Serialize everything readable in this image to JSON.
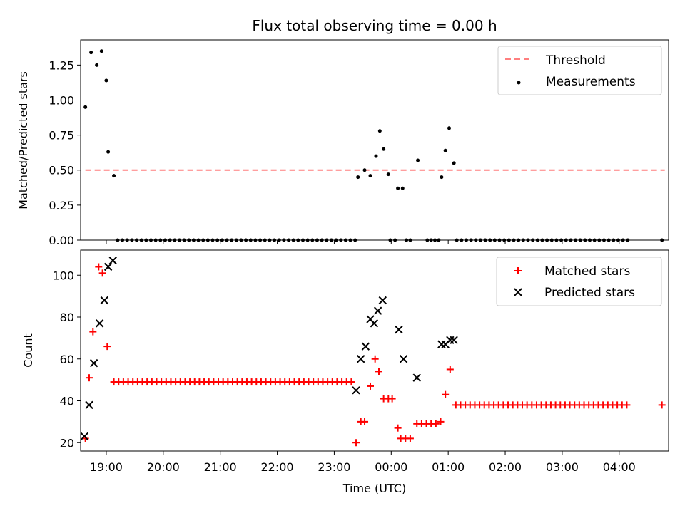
{
  "title": "Flux total observing time = 0.00 h",
  "xlabel": "Time (UTC)",
  "colors": {
    "threshold": "#ff7f7f",
    "measurement": "#000000",
    "matched": "#ff0000",
    "predicted": "#000000"
  },
  "chart_data": [
    {
      "type": "scatter",
      "ylabel": "Matched/Predicted stars",
      "xlim": [
        "18:33",
        "04:52"
      ],
      "ylim": [
        0,
        1.43
      ],
      "yticks": [
        0.0,
        0.25,
        0.5,
        0.75,
        1.0,
        1.25
      ],
      "ytick_labels": [
        "0.00",
        "0.25",
        "0.50",
        "0.75",
        "1.00",
        "1.25"
      ],
      "legend": "top-right",
      "threshold": {
        "name": "Threshold",
        "y": 0.5,
        "x": [
          "18:38",
          "04:48"
        ]
      },
      "series": [
        {
          "name": "Measurements",
          "points": [
            [
              "18:38",
              0.95
            ],
            [
              "18:44",
              1.34
            ],
            [
              "18:50",
              1.25
            ],
            [
              "18:55",
              1.35
            ],
            [
              "19:00",
              1.14
            ],
            [
              "19:02",
              0.63
            ],
            [
              "19:08",
              0.46
            ],
            [
              "19:12",
              0
            ],
            [
              "19:17",
              0
            ],
            [
              "19:22",
              0
            ],
            [
              "19:27",
              0
            ],
            [
              "19:32",
              0
            ],
            [
              "19:37",
              0
            ],
            [
              "19:42",
              0
            ],
            [
              "19:47",
              0
            ],
            [
              "19:52",
              0
            ],
            [
              "19:57",
              0
            ],
            [
              "20:02",
              0
            ],
            [
              "20:07",
              0
            ],
            [
              "20:12",
              0
            ],
            [
              "20:17",
              0
            ],
            [
              "20:22",
              0
            ],
            [
              "20:27",
              0
            ],
            [
              "20:32",
              0
            ],
            [
              "20:37",
              0
            ],
            [
              "20:42",
              0
            ],
            [
              "20:47",
              0
            ],
            [
              "20:52",
              0
            ],
            [
              "20:57",
              0
            ],
            [
              "21:02",
              0
            ],
            [
              "21:07",
              0
            ],
            [
              "21:12",
              0
            ],
            [
              "21:17",
              0
            ],
            [
              "21:22",
              0
            ],
            [
              "21:27",
              0
            ],
            [
              "21:32",
              0
            ],
            [
              "21:37",
              0
            ],
            [
              "21:42",
              0
            ],
            [
              "21:47",
              0
            ],
            [
              "21:52",
              0
            ],
            [
              "21:57",
              0
            ],
            [
              "22:02",
              0
            ],
            [
              "22:07",
              0
            ],
            [
              "22:12",
              0
            ],
            [
              "22:17",
              0
            ],
            [
              "22:22",
              0
            ],
            [
              "22:27",
              0
            ],
            [
              "22:32",
              0
            ],
            [
              "22:37",
              0
            ],
            [
              "22:42",
              0
            ],
            [
              "22:47",
              0
            ],
            [
              "22:52",
              0
            ],
            [
              "22:57",
              0
            ],
            [
              "23:02",
              0
            ],
            [
              "23:07",
              0
            ],
            [
              "23:12",
              0
            ],
            [
              "23:17",
              0
            ],
            [
              "23:22",
              0
            ],
            [
              "23:25",
              0.45
            ],
            [
              "23:32",
              0.5
            ],
            [
              "23:38",
              0.46
            ],
            [
              "23:44",
              0.6
            ],
            [
              "23:48",
              0.78
            ],
            [
              "23:52",
              0.65
            ],
            [
              "23:57",
              0.47
            ],
            [
              "23:59",
              0
            ],
            [
              "00:04",
              0
            ],
            [
              "00:07",
              0.37
            ],
            [
              "00:12",
              0.37
            ],
            [
              "00:16",
              0
            ],
            [
              "00:20",
              0
            ],
            [
              "00:28",
              0.57
            ],
            [
              "00:38",
              0
            ],
            [
              "00:42",
              0
            ],
            [
              "00:46",
              0
            ],
            [
              "00:50",
              0
            ],
            [
              "00:53",
              0.45
            ],
            [
              "00:57",
              0.64
            ],
            [
              "01:01",
              0.8
            ],
            [
              "01:06",
              0.55
            ],
            [
              "01:09",
              0
            ],
            [
              "01:14",
              0
            ],
            [
              "01:19",
              0
            ],
            [
              "01:24",
              0
            ],
            [
              "01:29",
              0
            ],
            [
              "01:34",
              0
            ],
            [
              "01:39",
              0
            ],
            [
              "01:44",
              0
            ],
            [
              "01:49",
              0
            ],
            [
              "01:54",
              0
            ],
            [
              "01:59",
              0
            ],
            [
              "02:04",
              0
            ],
            [
              "02:09",
              0
            ],
            [
              "02:14",
              0
            ],
            [
              "02:19",
              0
            ],
            [
              "02:24",
              0
            ],
            [
              "02:29",
              0
            ],
            [
              "02:34",
              0
            ],
            [
              "02:39",
              0
            ],
            [
              "02:44",
              0
            ],
            [
              "02:49",
              0
            ],
            [
              "02:54",
              0
            ],
            [
              "02:59",
              0
            ],
            [
              "03:04",
              0
            ],
            [
              "03:09",
              0
            ],
            [
              "03:14",
              0
            ],
            [
              "03:19",
              0
            ],
            [
              "03:24",
              0
            ],
            [
              "03:29",
              0
            ],
            [
              "03:34",
              0
            ],
            [
              "03:39",
              0
            ],
            [
              "03:44",
              0
            ],
            [
              "03:49",
              0
            ],
            [
              "03:54",
              0
            ],
            [
              "03:59",
              0
            ],
            [
              "04:04",
              0
            ],
            [
              "04:09",
              0
            ],
            [
              "04:45",
              0
            ]
          ]
        }
      ]
    },
    {
      "type": "scatter",
      "ylabel": "Count",
      "xlim": [
        "18:33",
        "04:52"
      ],
      "ylim": [
        16,
        112
      ],
      "yticks": [
        20,
        40,
        60,
        80,
        100
      ],
      "ytick_labels": [
        "20",
        "40",
        "60",
        "80",
        "100"
      ],
      "xticks": [
        "19:00",
        "20:00",
        "21:00",
        "22:00",
        "23:00",
        "00:00",
        "01:00",
        "02:00",
        "03:00",
        "04:00"
      ],
      "legend": "top-right",
      "series": [
        {
          "name": "Matched stars",
          "marker": "plus",
          "points": [
            [
              "18:38",
              22
            ],
            [
              "18:42",
              51
            ],
            [
              "18:46",
              73
            ],
            [
              "18:52",
              104
            ],
            [
              "18:56",
              101
            ],
            [
              "19:01",
              66
            ],
            [
              "19:08",
              49
            ],
            [
              "19:13",
              49
            ],
            [
              "19:18",
              49
            ],
            [
              "19:23",
              49
            ],
            [
              "19:28",
              49
            ],
            [
              "19:33",
              49
            ],
            [
              "19:38",
              49
            ],
            [
              "19:43",
              49
            ],
            [
              "19:48",
              49
            ],
            [
              "19:53",
              49
            ],
            [
              "19:58",
              49
            ],
            [
              "20:03",
              49
            ],
            [
              "20:08",
              49
            ],
            [
              "20:13",
              49
            ],
            [
              "20:18",
              49
            ],
            [
              "20:23",
              49
            ],
            [
              "20:28",
              49
            ],
            [
              "20:33",
              49
            ],
            [
              "20:38",
              49
            ],
            [
              "20:43",
              49
            ],
            [
              "20:48",
              49
            ],
            [
              "20:53",
              49
            ],
            [
              "20:58",
              49
            ],
            [
              "21:03",
              49
            ],
            [
              "21:08",
              49
            ],
            [
              "21:13",
              49
            ],
            [
              "21:18",
              49
            ],
            [
              "21:23",
              49
            ],
            [
              "21:28",
              49
            ],
            [
              "21:33",
              49
            ],
            [
              "21:38",
              49
            ],
            [
              "21:43",
              49
            ],
            [
              "21:48",
              49
            ],
            [
              "21:53",
              49
            ],
            [
              "21:58",
              49
            ],
            [
              "22:03",
              49
            ],
            [
              "22:08",
              49
            ],
            [
              "22:13",
              49
            ],
            [
              "22:18",
              49
            ],
            [
              "22:23",
              49
            ],
            [
              "22:28",
              49
            ],
            [
              "22:33",
              49
            ],
            [
              "22:38",
              49
            ],
            [
              "22:43",
              49
            ],
            [
              "22:48",
              49
            ],
            [
              "22:53",
              49
            ],
            [
              "22:58",
              49
            ],
            [
              "23:03",
              49
            ],
            [
              "23:08",
              49
            ],
            [
              "23:13",
              49
            ],
            [
              "23:18",
              49
            ],
            [
              "23:23",
              20
            ],
            [
              "23:28",
              30
            ],
            [
              "23:32",
              30
            ],
            [
              "23:38",
              47
            ],
            [
              "23:43",
              60
            ],
            [
              "23:47",
              54
            ],
            [
              "23:52",
              41
            ],
            [
              "23:57",
              41
            ],
            [
              "00:01",
              41
            ],
            [
              "00:07",
              27
            ],
            [
              "00:10",
              22
            ],
            [
              "00:15",
              22
            ],
            [
              "00:20",
              22
            ],
            [
              "00:27",
              29
            ],
            [
              "00:32",
              29
            ],
            [
              "00:37",
              29
            ],
            [
              "00:42",
              29
            ],
            [
              "00:47",
              29
            ],
            [
              "00:52",
              30
            ],
            [
              "00:57",
              43
            ],
            [
              "01:02",
              55
            ],
            [
              "01:08",
              38
            ],
            [
              "01:13",
              38
            ],
            [
              "01:18",
              38
            ],
            [
              "01:23",
              38
            ],
            [
              "01:28",
              38
            ],
            [
              "01:33",
              38
            ],
            [
              "01:38",
              38
            ],
            [
              "01:43",
              38
            ],
            [
              "01:48",
              38
            ],
            [
              "01:53",
              38
            ],
            [
              "01:58",
              38
            ],
            [
              "02:03",
              38
            ],
            [
              "02:08",
              38
            ],
            [
              "02:13",
              38
            ],
            [
              "02:18",
              38
            ],
            [
              "02:23",
              38
            ],
            [
              "02:28",
              38
            ],
            [
              "02:33",
              38
            ],
            [
              "02:38",
              38
            ],
            [
              "02:43",
              38
            ],
            [
              "02:48",
              38
            ],
            [
              "02:53",
              38
            ],
            [
              "02:58",
              38
            ],
            [
              "03:03",
              38
            ],
            [
              "03:08",
              38
            ],
            [
              "03:13",
              38
            ],
            [
              "03:18",
              38
            ],
            [
              "03:23",
              38
            ],
            [
              "03:28",
              38
            ],
            [
              "03:33",
              38
            ],
            [
              "03:38",
              38
            ],
            [
              "03:43",
              38
            ],
            [
              "03:48",
              38
            ],
            [
              "03:53",
              38
            ],
            [
              "03:58",
              38
            ],
            [
              "04:03",
              38
            ],
            [
              "04:08",
              38
            ],
            [
              "04:45",
              38
            ]
          ]
        },
        {
          "name": "Predicted stars",
          "marker": "x",
          "points": [
            [
              "18:37",
              23
            ],
            [
              "18:42",
              38
            ],
            [
              "18:47",
              58
            ],
            [
              "18:53",
              77
            ],
            [
              "18:58",
              88
            ],
            [
              "19:02",
              104
            ],
            [
              "19:07",
              107
            ],
            [
              "23:23",
              45
            ],
            [
              "23:28",
              60
            ],
            [
              "23:33",
              66
            ],
            [
              "23:38",
              79
            ],
            [
              "23:42",
              77
            ],
            [
              "23:46",
              83
            ],
            [
              "23:51",
              88
            ],
            [
              "00:08",
              74
            ],
            [
              "00:13",
              60
            ],
            [
              "00:27",
              51
            ],
            [
              "00:53",
              67
            ],
            [
              "00:57",
              67
            ],
            [
              "01:02",
              69
            ],
            [
              "01:06",
              69
            ]
          ]
        }
      ]
    }
  ]
}
